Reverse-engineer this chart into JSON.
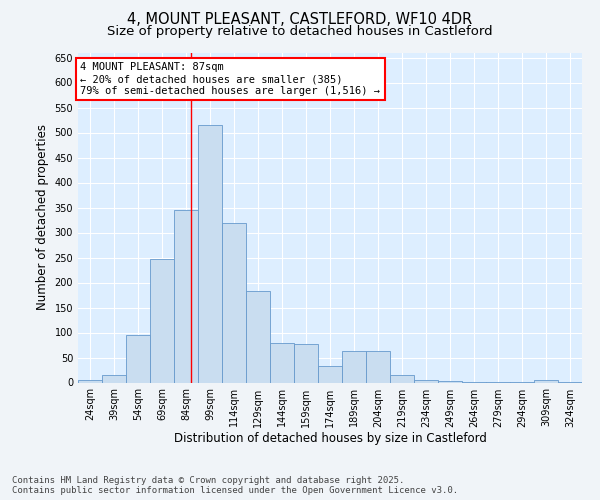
{
  "title_line1": "4, MOUNT PLEASANT, CASTLEFORD, WF10 4DR",
  "title_line2": "Size of property relative to detached houses in Castleford",
  "xlabel": "Distribution of detached houses by size in Castleford",
  "ylabel": "Number of detached properties",
  "bar_color": "#c9ddf0",
  "bar_edge_color": "#6699cc",
  "background_color": "#ddeeff",
  "fig_background": "#f0f4f8",
  "annotation_text": "4 MOUNT PLEASANT: 87sqm\n← 20% of detached houses are smaller (385)\n79% of semi-detached houses are larger (1,516) →",
  "vline_x": 87,
  "categories": [
    "24sqm",
    "39sqm",
    "54sqm",
    "69sqm",
    "84sqm",
    "99sqm",
    "114sqm",
    "129sqm",
    "144sqm",
    "159sqm",
    "174sqm",
    "189sqm",
    "204sqm",
    "219sqm",
    "234sqm",
    "249sqm",
    "264sqm",
    "279sqm",
    "294sqm",
    "309sqm",
    "324sqm"
  ],
  "bin_edges": [
    16.5,
    31.5,
    46.5,
    61.5,
    76.5,
    91.5,
    106.5,
    121.5,
    136.5,
    151.5,
    166.5,
    181.5,
    196.5,
    211.5,
    226.5,
    241.5,
    256.5,
    271.5,
    286.5,
    301.5,
    316.5,
    331.5
  ],
  "values": [
    5,
    15,
    95,
    248,
    345,
    515,
    320,
    183,
    80,
    78,
    33,
    63,
    63,
    15,
    5,
    3,
    2,
    2,
    1,
    5,
    2
  ],
  "ylim": [
    0,
    660
  ],
  "yticks": [
    0,
    50,
    100,
    150,
    200,
    250,
    300,
    350,
    400,
    450,
    500,
    550,
    600,
    650
  ],
  "footer_text": "Contains HM Land Registry data © Crown copyright and database right 2025.\nContains public sector information licensed under the Open Government Licence v3.0.",
  "title_fontsize": 10.5,
  "subtitle_fontsize": 9.5,
  "axis_label_fontsize": 8.5,
  "tick_fontsize": 7,
  "annotation_fontsize": 7.5,
  "footer_fontsize": 6.5
}
